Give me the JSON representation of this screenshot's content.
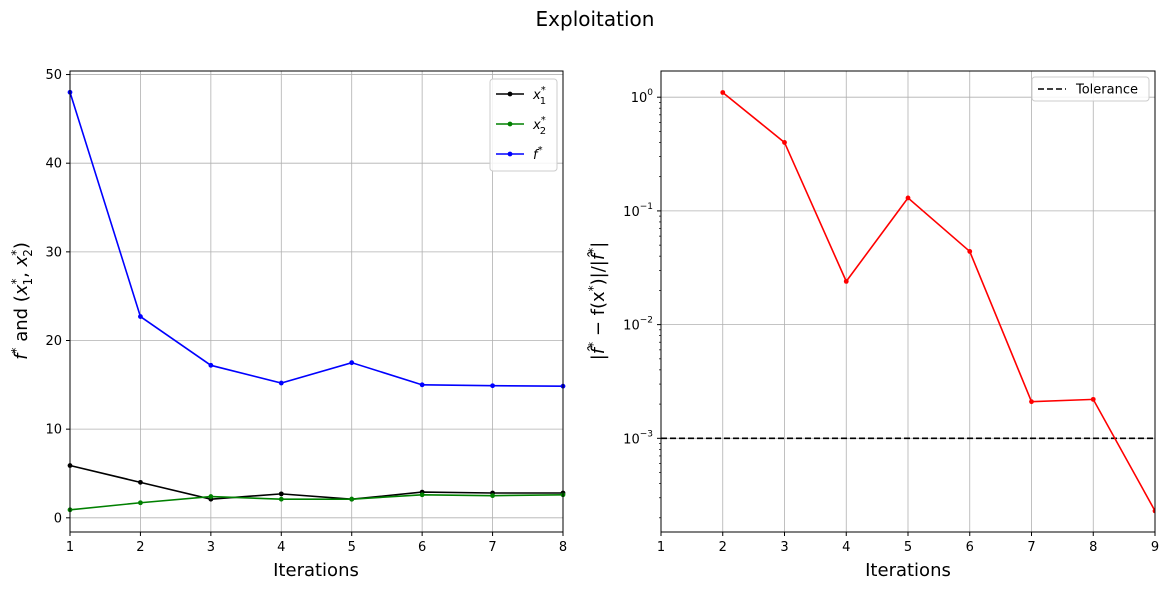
{
  "figure": {
    "title": "Exploitation"
  },
  "chart_data": [
    {
      "type": "line",
      "title": "",
      "xlabel": "Iterations",
      "ylabel": "f* and (x1*, x2*)",
      "ylabel_parts": {
        "f": "f",
        "star": "*",
        "and": " and (",
        "x": "x",
        "sub1": "1",
        "sub2": "2",
        "comma": ", ",
        "close": ")"
      },
      "x": [
        1,
        2,
        3,
        4,
        5,
        6,
        7,
        8
      ],
      "xlim": [
        1,
        8
      ],
      "ylim": [
        -1.6,
        50.4
      ],
      "xticks": [
        "1",
        "2",
        "3",
        "4",
        "5",
        "6",
        "7",
        "8"
      ],
      "yticks": [
        "0",
        "10",
        "20",
        "30",
        "40",
        "50"
      ],
      "grid": true,
      "legend": "top-right",
      "series": [
        {
          "name": "x1*",
          "legend_base": "x",
          "legend_sub": "1",
          "legend_sup": "*",
          "color": "#000000",
          "values": [
            5.9,
            4.0,
            2.1,
            2.7,
            2.1,
            2.9,
            2.8,
            2.8
          ]
        },
        {
          "name": "x2*",
          "legend_base": "x",
          "legend_sub": "2",
          "legend_sup": "*",
          "color": "#008000",
          "values": [
            0.9,
            1.7,
            2.4,
            2.1,
            2.1,
            2.6,
            2.5,
            2.6
          ]
        },
        {
          "name": "f*",
          "legend_base": "f",
          "legend_sub": "",
          "legend_sup": "*",
          "color": "#0000ff",
          "values": [
            48.0,
            22.7,
            17.2,
            15.2,
            17.5,
            15.0,
            14.9,
            14.85
          ]
        }
      ]
    },
    {
      "type": "line",
      "title": "",
      "xlabel": "Iterations",
      "ylabel": "|f̂* − f(x*)|/|f̂*|",
      "ylabel_parts": {
        "bar1": "|",
        "fhat": "f̂",
        "star": "*",
        "mid": " − f(x",
        "close": ")|/|",
        "bar2": "|"
      },
      "yscale": "log",
      "x": [
        2,
        3,
        4,
        5,
        6,
        7,
        8,
        9
      ],
      "xlim": [
        1,
        9
      ],
      "ylim": [
        0.00015,
        1.7
      ],
      "xticks": [
        "1",
        "2",
        "3",
        "4",
        "5",
        "6",
        "7",
        "8",
        "9"
      ],
      "yticks": [
        {
          "base": "10",
          "exp": "0",
          "value": 1
        },
        {
          "base": "10",
          "exp": "−1",
          "value": 0.1
        },
        {
          "base": "10",
          "exp": "−2",
          "value": 0.01
        },
        {
          "base": "10",
          "exp": "−3",
          "value": 0.001
        }
      ],
      "grid": true,
      "legend": "top-right",
      "series": [
        {
          "name": "",
          "color": "#ff0000",
          "values": [
            1.1,
            0.4,
            0.024,
            0.13,
            0.044,
            0.0021,
            0.0022,
            0.00023
          ]
        }
      ],
      "reference_line": {
        "name": "Tolerance",
        "value": 0.001,
        "style": "dashed",
        "color": "#000000"
      }
    }
  ]
}
